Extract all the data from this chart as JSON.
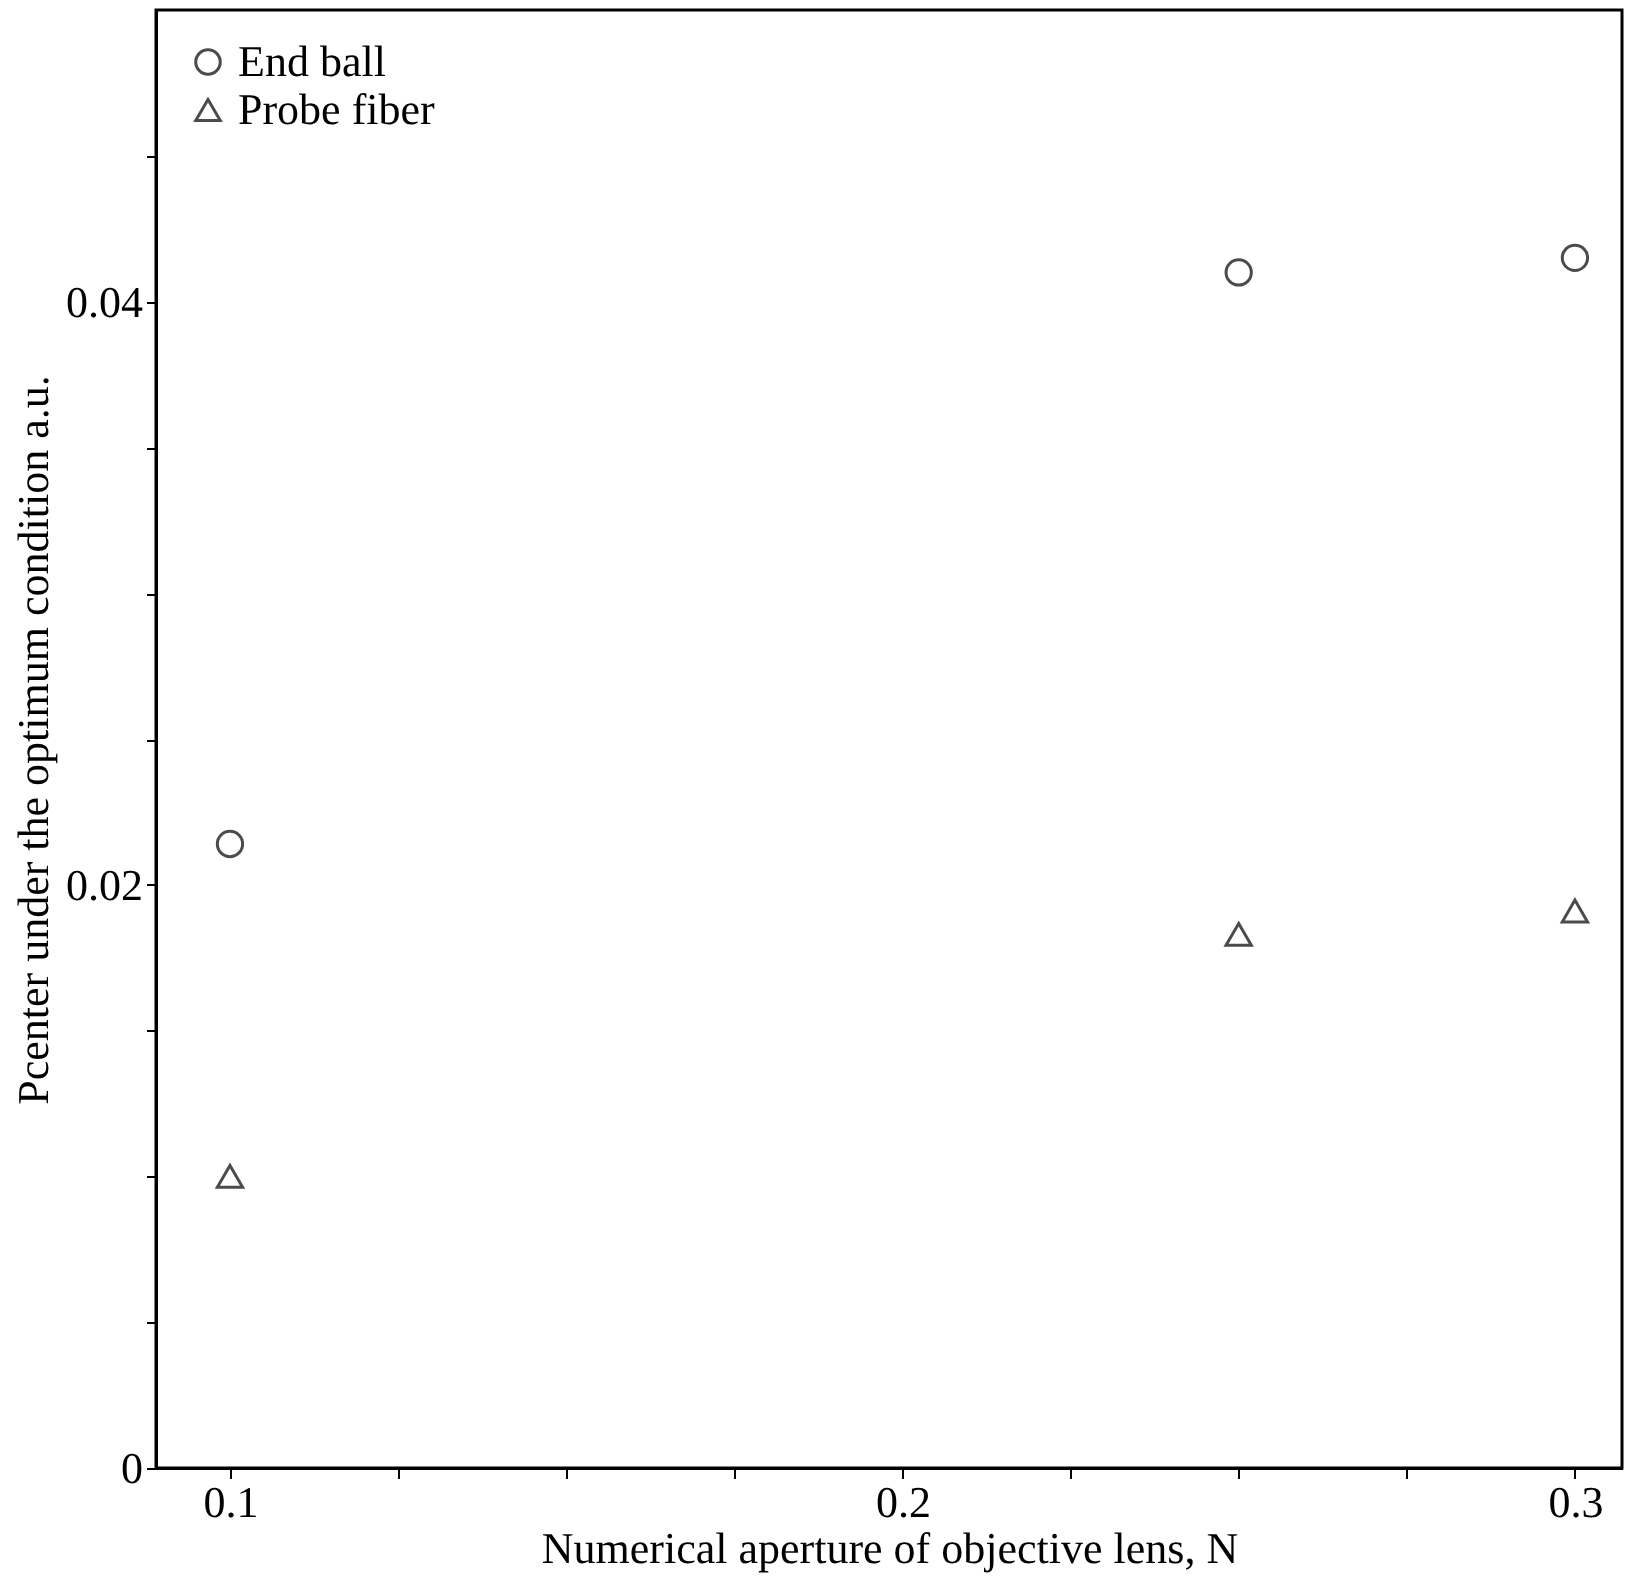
{
  "chart_data": {
    "type": "scatter",
    "xlabel": "Numerical aperture of objective lens, N",
    "ylabel": "Pcenter under the optimum condition    a.u.",
    "x": [
      0.1,
      0.25,
      0.3
    ],
    "series": [
      {
        "name": "End ball",
        "color": "#000000",
        "marker": "circle",
        "values": [
          0.0214,
          0.041,
          0.0415
        ]
      },
      {
        "name": "Probe fiber",
        "color": "#000000",
        "marker": "triangle",
        "values": [
          0.01,
          0.0183,
          0.0191
        ]
      }
    ],
    "xlim": [
      0.089,
      0.307
    ],
    "xticks": [
      0.1,
      {
        "value": 0.125,
        "label": null
      },
      {
        "value": 0.15,
        "label": null
      },
      {
        "value": 0.175,
        "label": null
      },
      0.2,
      {
        "value": 0.225,
        "label": null
      },
      {
        "value": 0.25,
        "label": null
      },
      {
        "value": 0.275,
        "label": null
      },
      0.3
    ],
    "ylim": [
      0,
      0.05
    ],
    "yticks": [
      0,
      {
        "value": 0.005,
        "label": null
      },
      {
        "value": 0.01,
        "label": null
      },
      {
        "value": 0.015,
        "label": null
      },
      0.02,
      {
        "value": 0.025,
        "label": null
      },
      {
        "value": 0.03,
        "label": null
      },
      {
        "value": 0.035,
        "label": null
      },
      0.04,
      {
        "value": 0.045,
        "label": null
      }
    ],
    "grid": false,
    "legend": "top left"
  }
}
